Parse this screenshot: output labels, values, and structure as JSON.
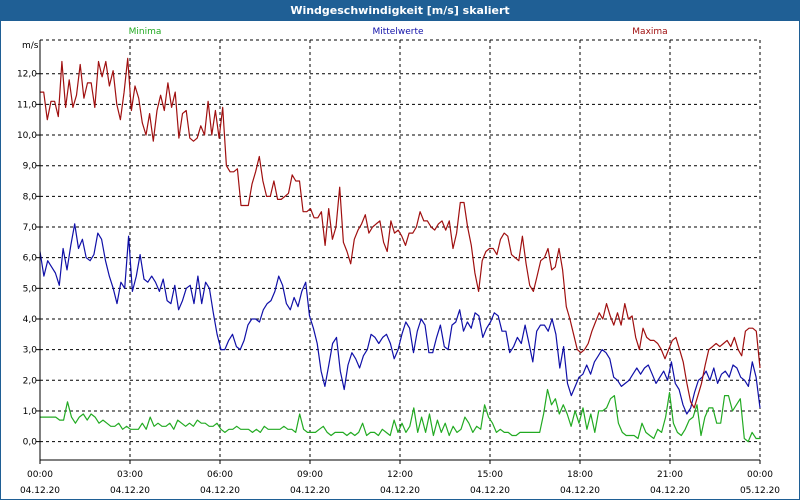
{
  "window": {
    "title": "Windgeschwindigkeit [m/s] skaliert"
  },
  "chart_data": {
    "type": "line",
    "title": "Windgeschwindigkeit [m/s] skaliert",
    "ylabel": "m/s",
    "xlabel": "",
    "ylim": [
      -0.6,
      13.1
    ],
    "yticks": [
      0.0,
      1.0,
      2.0,
      3.0,
      4.0,
      5.0,
      6.0,
      7.0,
      8.0,
      9.0,
      10.0,
      11.0,
      12.0
    ],
    "ytick_labels": [
      "0,0",
      "1,0",
      "2,0",
      "3,0",
      "4,0",
      "5,0",
      "6,0",
      "7,0",
      "8,0",
      "9,0",
      "10,0",
      "11,0",
      "12,0"
    ],
    "xlim": [
      0,
      24
    ],
    "xticks": [
      0,
      3,
      6,
      9,
      12,
      15,
      18,
      21,
      24
    ],
    "xtick_times": [
      "00:00",
      "03:00",
      "06:00",
      "09:00",
      "12:00",
      "15:00",
      "18:00",
      "21:00",
      "00:00"
    ],
    "xtick_dates": [
      "04.12.20",
      "04.12.20",
      "04.12.20",
      "04.12.20",
      "04.12.20",
      "04.12.20",
      "04.12.20",
      "04.12.20",
      "05.12.20"
    ],
    "grid": true,
    "legend_position": "top",
    "x_step_hours": 0.1,
    "series": [
      {
        "name": "Minima",
        "color": "#22aa22",
        "values": [
          0.8,
          0.8,
          0.8,
          0.8,
          0.8,
          0.7,
          0.7,
          1.3,
          0.8,
          0.6,
          0.8,
          0.9,
          0.7,
          0.9,
          0.8,
          0.6,
          0.7,
          0.6,
          0.5,
          0.5,
          0.6,
          0.4,
          0.5,
          0.4,
          0.4,
          0.4,
          0.6,
          0.4,
          0.8,
          0.5,
          0.6,
          0.5,
          0.5,
          0.6,
          0.4,
          0.7,
          0.6,
          0.5,
          0.6,
          0.5,
          0.7,
          0.6,
          0.6,
          0.5,
          0.5,
          0.6,
          0.4,
          0.3,
          0.4,
          0.4,
          0.5,
          0.4,
          0.4,
          0.4,
          0.3,
          0.4,
          0.3,
          0.5,
          0.4,
          0.4,
          0.4,
          0.4,
          0.5,
          0.4,
          0.4,
          0.3,
          0.9,
          0.4,
          0.3,
          0.3,
          0.3,
          0.4,
          0.5,
          0.3,
          0.2,
          0.3,
          0.3,
          0.3,
          0.2,
          0.3,
          0.2,
          0.3,
          0.6,
          0.2,
          0.3,
          0.3,
          0.2,
          0.4,
          0.3,
          0.2,
          0.7,
          0.3,
          0.6,
          0.3,
          0.5,
          1.1,
          0.3,
          0.8,
          0.3,
          0.9,
          0.2,
          0.7,
          0.3,
          0.6,
          0.2,
          0.5,
          0.3,
          0.4,
          0.8,
          0.6,
          0.3,
          0.5,
          0.4,
          1.2,
          0.8,
          0.6,
          0.3,
          0.4,
          0.3,
          0.3,
          0.2,
          0.2,
          0.3,
          0.3,
          0.3,
          0.3,
          0.3,
          0.3,
          0.9,
          1.7,
          1.2,
          1.4,
          0.9,
          1.2,
          0.9,
          0.5,
          1.0,
          0.6,
          1.1,
          0.4,
          0.9,
          0.3,
          1.0,
          1.0,
          1.1,
          1.4,
          1.5,
          0.6,
          0.3,
          0.2,
          0.2,
          0.2,
          0.1,
          0.6,
          0.3,
          0.2,
          0.1,
          0.4,
          0.3,
          0.8,
          1.6,
          0.6,
          0.3,
          0.2,
          0.4,
          0.7,
          0.8,
          1.2,
          0.2,
          0.8,
          1.1,
          1.1,
          0.6,
          0.6,
          1.5,
          1.5,
          1.0,
          1.2,
          1.4,
          0.1,
          0.0,
          0.3,
          0.1,
          0.1
        ]
      },
      {
        "name": "Mittelwerte",
        "color": "#1010a8",
        "values": [
          6.2,
          5.4,
          5.9,
          5.7,
          5.5,
          5.1,
          6.3,
          5.6,
          6.4,
          7.1,
          6.3,
          6.6,
          6.0,
          5.9,
          6.1,
          6.8,
          6.6,
          5.9,
          5.4,
          5.0,
          4.5,
          5.2,
          5.0,
          6.7,
          4.9,
          5.4,
          6.1,
          5.3,
          5.2,
          5.4,
          5.2,
          4.9,
          5.3,
          4.6,
          4.5,
          5.1,
          4.3,
          4.6,
          5.0,
          5.1,
          4.5,
          5.4,
          4.5,
          5.2,
          5.0,
          4.2,
          3.5,
          3.0,
          3.0,
          3.3,
          3.5,
          3.1,
          3.0,
          3.3,
          3.8,
          4.0,
          4.0,
          3.9,
          4.3,
          4.5,
          4.6,
          4.9,
          5.4,
          5.1,
          4.5,
          4.3,
          4.7,
          4.4,
          4.9,
          5.2,
          4.1,
          3.7,
          3.2,
          2.3,
          1.8,
          2.5,
          3.2,
          3.4,
          2.3,
          1.7,
          2.5,
          2.9,
          2.7,
          2.4,
          2.8,
          3.0,
          3.5,
          3.4,
          3.2,
          3.4,
          3.5,
          3.2,
          2.7,
          3.0,
          3.5,
          3.9,
          3.7,
          2.9,
          3.6,
          4.0,
          3.8,
          2.9,
          2.9,
          3.4,
          3.8,
          3.1,
          3.0,
          3.8,
          3.9,
          4.3,
          3.6,
          3.9,
          3.7,
          4.2,
          4.1,
          3.4,
          3.7,
          3.9,
          4.2,
          4.1,
          3.6,
          3.6,
          2.9,
          3.1,
          3.4,
          3.2,
          3.8,
          3.2,
          2.6,
          3.6,
          3.8,
          3.8,
          3.6,
          4.0,
          3.5,
          2.4,
          3.1,
          1.9,
          1.5,
          1.8,
          2.1,
          2.2,
          2.5,
          2.2,
          2.6,
          2.8,
          3.0,
          2.9,
          2.7,
          2.1,
          2.0,
          1.8,
          1.9,
          2.0,
          2.2,
          2.4,
          2.2,
          2.4,
          2.5,
          2.2,
          1.9,
          2.1,
          2.3,
          2.0,
          2.6,
          1.9,
          1.7,
          1.2,
          0.9,
          1.1,
          1.6,
          2.0,
          2.1,
          2.3,
          2.0,
          2.4,
          1.9,
          2.2,
          2.3,
          2.1,
          2.5,
          2.4,
          2.1,
          2.0,
          1.8,
          2.6,
          2.1,
          1.1
        ]
      },
      {
        "name": "Maxima",
        "color": "#a01010",
        "values": [
          11.4,
          11.4,
          10.5,
          11.1,
          11.1,
          10.6,
          12.4,
          10.9,
          11.8,
          10.9,
          11.3,
          12.3,
          11.2,
          11.7,
          11.7,
          10.9,
          12.4,
          11.9,
          12.4,
          11.6,
          12.1,
          11.0,
          10.5,
          11.4,
          12.5,
          10.8,
          11.6,
          11.2,
          10.4,
          10.0,
          10.7,
          9.8,
          10.8,
          11.3,
          10.8,
          11.7,
          10.9,
          11.4,
          9.9,
          10.7,
          10.8,
          9.9,
          9.8,
          9.9,
          10.3,
          10.0,
          11.1,
          10.0,
          10.8,
          9.9,
          10.9,
          9.0,
          8.8,
          8.8,
          8.9,
          7.7,
          7.7,
          7.7,
          8.4,
          8.8,
          9.3,
          8.5,
          8.0,
          8.0,
          8.5,
          7.9,
          7.9,
          8.0,
          8.1,
          8.7,
          8.5,
          8.5,
          7.5,
          7.5,
          7.6,
          7.3,
          7.3,
          7.5,
          6.4,
          7.6,
          6.6,
          7.0,
          8.3,
          6.5,
          6.2,
          5.8,
          6.6,
          6.9,
          7.1,
          7.4,
          6.8,
          7.0,
          7.1,
          7.2,
          6.5,
          6.2,
          7.2,
          6.8,
          6.9,
          6.7,
          6.4,
          6.8,
          6.8,
          7.0,
          7.5,
          7.2,
          7.2,
          7.0,
          6.9,
          7.1,
          7.2,
          6.9,
          7.2,
          6.3,
          6.8,
          7.8,
          7.8,
          7.0,
          6.4,
          5.5,
          4.9,
          5.9,
          6.2,
          6.3,
          6.3,
          6.1,
          6.6,
          6.8,
          6.7,
          6.1,
          6.0,
          5.9,
          6.7,
          5.8,
          5.1,
          4.9,
          5.4,
          5.9,
          6.0,
          6.3,
          5.6,
          5.7,
          6.3,
          5.6,
          4.4,
          4.0,
          3.5,
          3.0,
          2.9,
          3.0,
          3.2,
          3.6,
          3.9,
          4.2,
          4.0,
          4.5,
          4.1,
          3.8,
          4.2,
          3.8,
          4.5,
          4.0,
          4.1,
          3.4,
          3.0,
          3.7,
          3.4,
          3.3,
          3.3,
          3.2,
          3.0,
          2.7,
          3.0,
          3.3,
          3.4,
          3.0,
          2.6,
          1.9,
          1.3,
          1.1,
          1.5,
          1.9,
          2.5,
          3.0,
          3.1,
          3.2,
          3.1,
          3.2,
          3.3,
          3.1,
          3.4,
          3.0,
          2.8,
          3.6,
          3.7,
          3.7,
          3.6,
          2.4
        ]
      }
    ]
  }
}
